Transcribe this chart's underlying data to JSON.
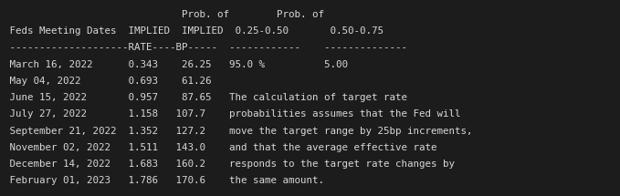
{
  "background_color": "#1c1c1c",
  "text_color": "#d8d8d8",
  "font_size": 7.8,
  "lines": [
    "                              Prob. of        Prob. of",
    " Feds Meeting Dates  IMPLIED  IMPLIED  0.25-0.50       0.50-0.75",
    " --------------------RATE----BP-----  ------------    --------------",
    " March 16, 2022      0.343    26.25   95.0 %          5.00",
    " May 04, 2022        0.693    61.26",
    " June 15, 2022       0.957    87.65   The calculation of target rate",
    " July 27, 2022       1.158   107.7    probabilities assumes that the Fed will",
    " September 21, 2022  1.352   127.2    move the target range by 25bp increments,",
    " November 02, 2022   1.511   143.0    and that the average effective rate",
    " December 14, 2022   1.683   160.2    responds to the target rate changes by",
    " February 01, 2023   1.786   170.6    the same amount."
  ]
}
